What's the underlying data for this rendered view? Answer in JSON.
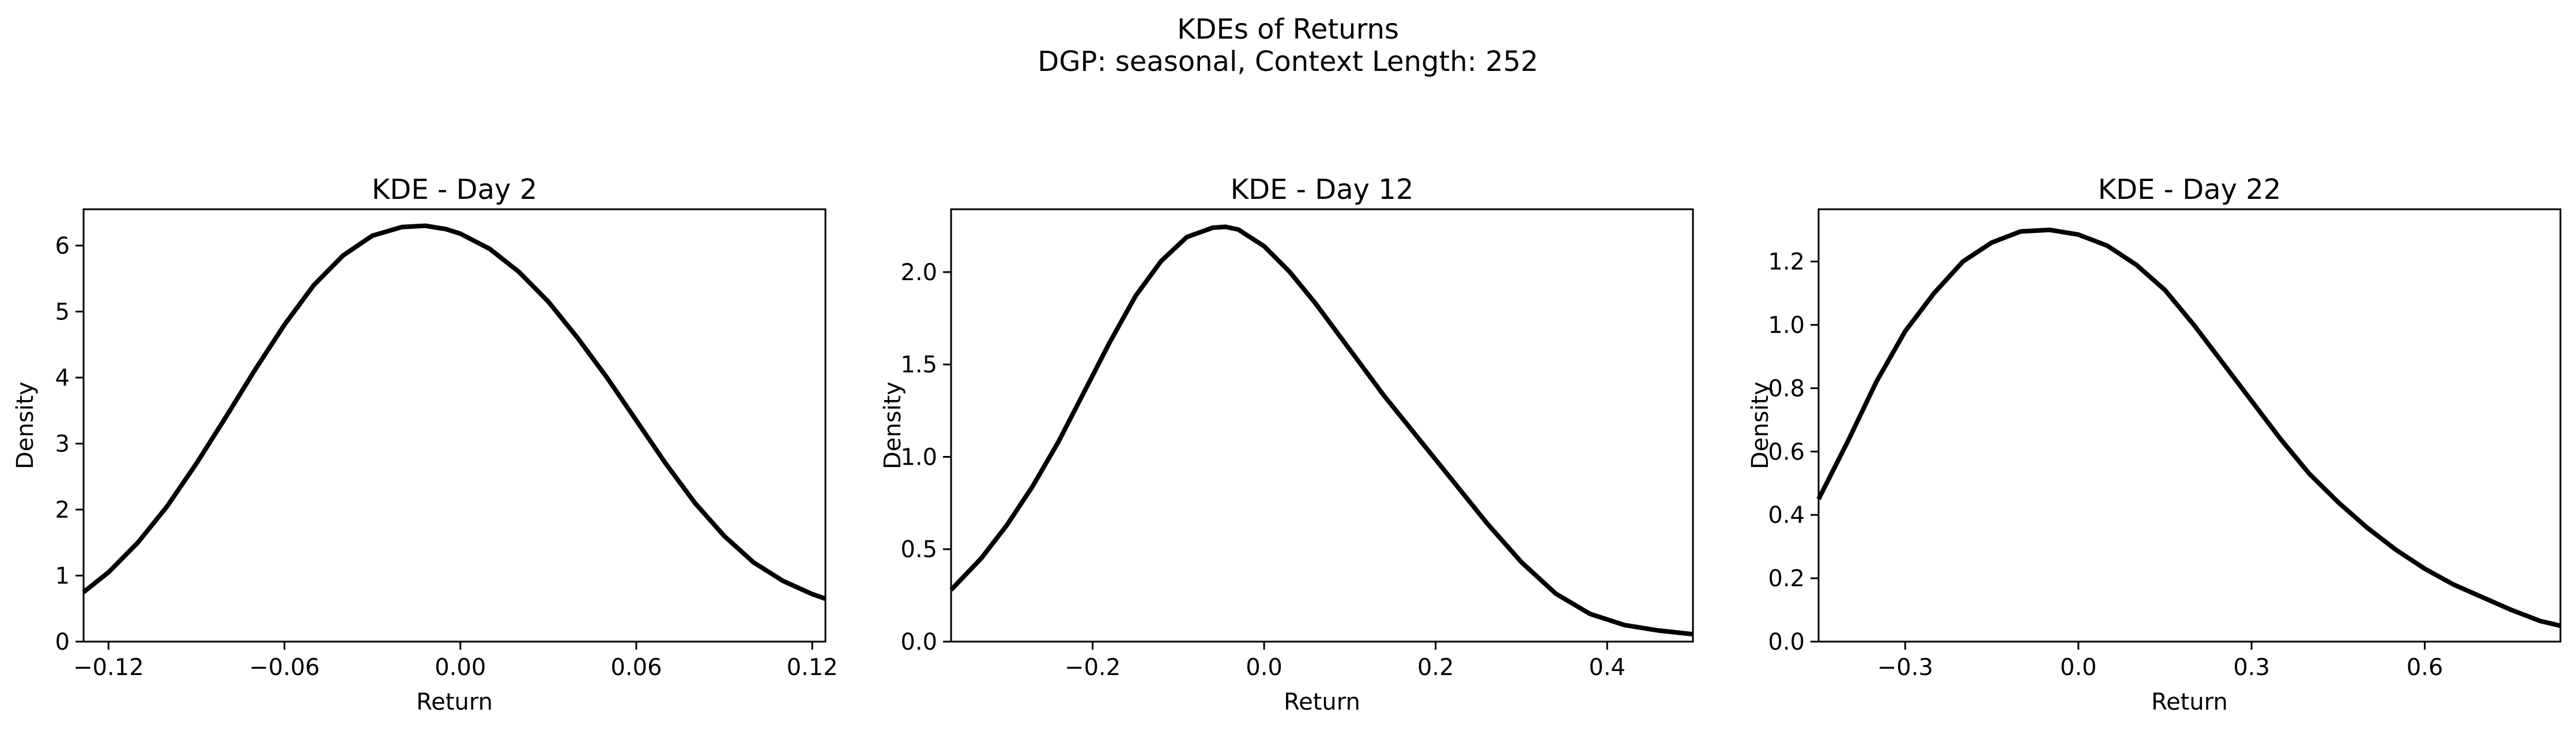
{
  "figure": {
    "title": "KDEs of Returns",
    "subtitle": "DGP: seasonal, Context Length: 252"
  },
  "chart_data": [
    {
      "type": "line",
      "title": "KDE - Day 2",
      "xlabel": "Return",
      "ylabel": "Density",
      "xlim": [
        -0.1285,
        0.1245
      ],
      "ylim": [
        0,
        6.55
      ],
      "xticks": [
        -0.12,
        -0.06,
        0.0,
        0.06,
        0.12
      ],
      "xtick_labels": [
        "−0.12",
        "−0.06",
        "0.00",
        "0.06",
        "0.12"
      ],
      "yticks": [
        0,
        1,
        2,
        3,
        4,
        5,
        6
      ],
      "ytick_labels": [
        "0",
        "1",
        "2",
        "3",
        "4",
        "5",
        "6"
      ],
      "grid": false,
      "series": [
        {
          "color": "#000000",
          "x": [
            -0.1285,
            -0.12,
            -0.11,
            -0.1,
            -0.09,
            -0.08,
            -0.07,
            -0.06,
            -0.05,
            -0.04,
            -0.03,
            -0.02,
            -0.012,
            -0.005,
            0.0,
            0.01,
            0.02,
            0.03,
            0.04,
            0.05,
            0.06,
            0.07,
            0.08,
            0.09,
            0.1,
            0.11,
            0.12,
            0.1245
          ],
          "y": [
            0.75,
            1.05,
            1.5,
            2.05,
            2.7,
            3.4,
            4.12,
            4.8,
            5.4,
            5.85,
            6.15,
            6.28,
            6.3,
            6.25,
            6.18,
            5.95,
            5.6,
            5.15,
            4.6,
            4.0,
            3.35,
            2.7,
            2.1,
            1.6,
            1.2,
            0.92,
            0.72,
            0.65
          ]
        }
      ]
    },
    {
      "type": "line",
      "title": "KDE - Day 12",
      "xlabel": "Return",
      "ylabel": "Density",
      "xlim": [
        -0.365,
        0.5
      ],
      "ylim": [
        0,
        2.34
      ],
      "xticks": [
        -0.2,
        0.0,
        0.2,
        0.4
      ],
      "xtick_labels": [
        "−0.2",
        "0.0",
        "0.2",
        "0.4"
      ],
      "yticks": [
        0.0,
        0.5,
        1.0,
        1.5,
        2.0
      ],
      "ytick_labels": [
        "0.0",
        "0.5",
        "1.0",
        "1.5",
        "2.0"
      ],
      "grid": false,
      "series": [
        {
          "color": "#000000",
          "x": [
            -0.365,
            -0.33,
            -0.3,
            -0.27,
            -0.24,
            -0.21,
            -0.18,
            -0.15,
            -0.12,
            -0.09,
            -0.06,
            -0.045,
            -0.03,
            0.0,
            0.03,
            0.06,
            0.1,
            0.14,
            0.18,
            0.22,
            0.26,
            0.3,
            0.34,
            0.38,
            0.42,
            0.46,
            0.5
          ],
          "y": [
            0.28,
            0.45,
            0.63,
            0.84,
            1.08,
            1.35,
            1.62,
            1.87,
            2.06,
            2.19,
            2.24,
            2.245,
            2.23,
            2.14,
            2.0,
            1.83,
            1.58,
            1.33,
            1.1,
            0.87,
            0.64,
            0.43,
            0.26,
            0.15,
            0.09,
            0.06,
            0.04
          ]
        }
      ]
    },
    {
      "type": "line",
      "title": "KDE - Day 22",
      "xlabel": "Return",
      "ylabel": "Density",
      "xlim": [
        -0.45,
        0.835
      ],
      "ylim": [
        0,
        1.365
      ],
      "xticks": [
        -0.3,
        0.0,
        0.3,
        0.6
      ],
      "xtick_labels": [
        "−0.3",
        "0.0",
        "0.3",
        "0.6"
      ],
      "yticks": [
        0.0,
        0.2,
        0.4,
        0.6,
        0.8,
        1.0,
        1.2
      ],
      "ytick_labels": [
        "0.0",
        "0.2",
        "0.4",
        "0.6",
        "0.8",
        "1.0",
        "1.2"
      ],
      "grid": false,
      "series": [
        {
          "color": "#000000",
          "x": [
            -0.45,
            -0.4,
            -0.35,
            -0.3,
            -0.25,
            -0.2,
            -0.15,
            -0.1,
            -0.05,
            0.0,
            0.05,
            0.1,
            0.15,
            0.2,
            0.25,
            0.3,
            0.35,
            0.4,
            0.45,
            0.5,
            0.55,
            0.6,
            0.65,
            0.7,
            0.75,
            0.8,
            0.835
          ],
          "y": [
            0.45,
            0.63,
            0.82,
            0.98,
            1.1,
            1.2,
            1.26,
            1.295,
            1.3,
            1.285,
            1.25,
            1.19,
            1.11,
            1.0,
            0.88,
            0.76,
            0.64,
            0.53,
            0.44,
            0.36,
            0.29,
            0.23,
            0.18,
            0.14,
            0.1,
            0.065,
            0.05
          ]
        }
      ]
    }
  ]
}
